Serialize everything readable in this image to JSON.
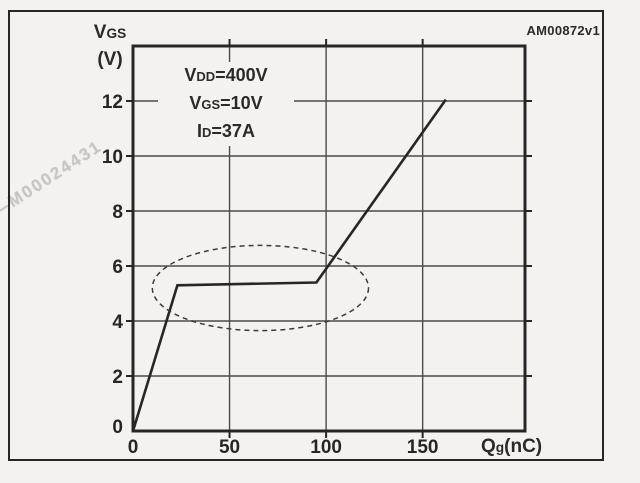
{
  "figure": {
    "code": "AM00872v1",
    "watermark": "—M00024431",
    "y_axis": {
      "main": "V",
      "sub": "GS",
      "unit": "(V)"
    },
    "x_axis": {
      "main": "Q",
      "sub": "g",
      "unit": "(nC)"
    },
    "conditions": [
      {
        "pre": "V",
        "sub": "DD",
        "post": "=400V"
      },
      {
        "pre": "V",
        "sub": "GS",
        "post": "=10V"
      },
      {
        "pre": "I",
        "sub": "D",
        "post": "=37A"
      }
    ]
  },
  "colors": {
    "ink": "#262626",
    "grid": "#4a4a4a",
    "background": "#f3f2ef",
    "watermark": "#c6c5c2"
  },
  "chart_data": {
    "type": "line",
    "title": "",
    "xlabel": "Qg(nC)",
    "ylabel": "VGS(V)",
    "xlim": [
      0,
      203
    ],
    "ylim": [
      0,
      14
    ],
    "xticks": [
      0,
      50,
      100,
      150
    ],
    "yticks": [
      0,
      2,
      4,
      6,
      8,
      10,
      12
    ],
    "grid": true,
    "legend": false,
    "series": [
      {
        "name": "VGS vs Qg gate charge curve",
        "points": [
          [
            0,
            0
          ],
          [
            23,
            5.3
          ],
          [
            95,
            5.4
          ],
          [
            162,
            12.05
          ]
        ]
      }
    ],
    "annotations": {
      "conditions": [
        "VDD=400V",
        "VGS=10V",
        "ID=37A"
      ],
      "ellipse": {
        "cx": 66,
        "cy": 5.2,
        "rx": 56,
        "ry": 1.55,
        "style": "dashed"
      }
    }
  }
}
